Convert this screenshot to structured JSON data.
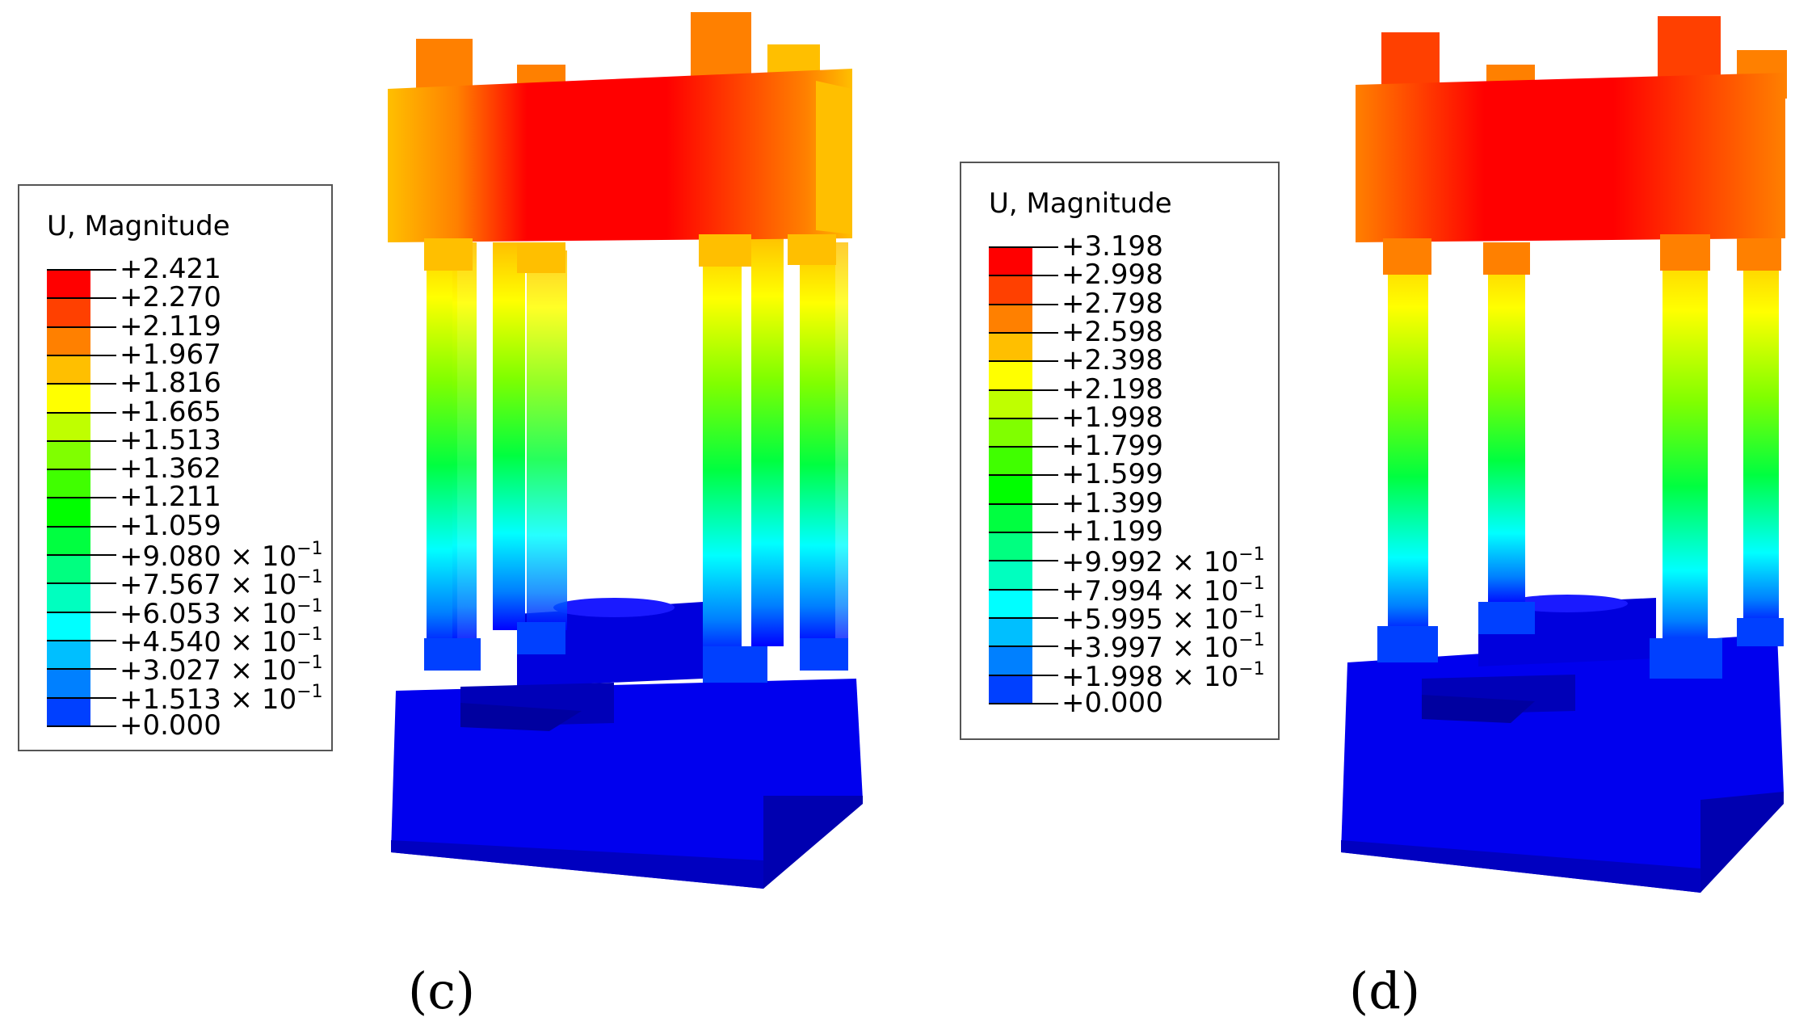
{
  "legends": [
    {
      "id": "c",
      "title": "U, Magnitude",
      "colors": [
        "#ff0000",
        "#ff4000",
        "#ff8000",
        "#ffbf00",
        "#ffff00",
        "#bfff00",
        "#80ff00",
        "#40ff00",
        "#00ff00",
        "#00ff40",
        "#00ff80",
        "#00ffbf",
        "#00ffff",
        "#00bfff",
        "#0080ff",
        "#0040ff",
        "#0000ff"
      ],
      "values": [
        {
          "mant": "+2.421",
          "exp": ""
        },
        {
          "mant": "+2.270",
          "exp": ""
        },
        {
          "mant": "+2.119",
          "exp": ""
        },
        {
          "mant": "+1.967",
          "exp": ""
        },
        {
          "mant": "+1.816",
          "exp": ""
        },
        {
          "mant": "+1.665",
          "exp": ""
        },
        {
          "mant": "+1.513",
          "exp": ""
        },
        {
          "mant": "+1.362",
          "exp": ""
        },
        {
          "mant": "+1.211",
          "exp": ""
        },
        {
          "mant": "+1.059",
          "exp": ""
        },
        {
          "mant": "+9.080",
          "exp": "−1"
        },
        {
          "mant": "+7.567",
          "exp": "−1"
        },
        {
          "mant": "+6.053",
          "exp": "−1"
        },
        {
          "mant": "+4.540",
          "exp": "−1"
        },
        {
          "mant": "+3.027",
          "exp": "−1"
        },
        {
          "mant": "+1.513",
          "exp": "−1"
        },
        {
          "mant": "+0.000",
          "exp": ""
        }
      ]
    },
    {
      "id": "d",
      "title": "U, Magnitude",
      "colors": [
        "#ff0000",
        "#ff4000",
        "#ff8000",
        "#ffbf00",
        "#ffff00",
        "#bfff00",
        "#80ff00",
        "#40ff00",
        "#00ff00",
        "#00ff40",
        "#00ff80",
        "#00ffbf",
        "#00ffff",
        "#00bfff",
        "#0080ff",
        "#0040ff",
        "#0000ff"
      ],
      "values": [
        {
          "mant": "+3.198",
          "exp": ""
        },
        {
          "mant": "+2.998",
          "exp": ""
        },
        {
          "mant": "+2.798",
          "exp": ""
        },
        {
          "mant": "+2.598",
          "exp": ""
        },
        {
          "mant": "+2.398",
          "exp": ""
        },
        {
          "mant": "+2.198",
          "exp": ""
        },
        {
          "mant": "+1.998",
          "exp": ""
        },
        {
          "mant": "+1.799",
          "exp": ""
        },
        {
          "mant": "+1.599",
          "exp": ""
        },
        {
          "mant": "+1.399",
          "exp": ""
        },
        {
          "mant": "+1.199",
          "exp": ""
        },
        {
          "mant": "+9.992",
          "exp": "−1"
        },
        {
          "mant": "+7.994",
          "exp": "−1"
        },
        {
          "mant": "+5.995",
          "exp": "−1"
        },
        {
          "mant": "+3.997",
          "exp": "−1"
        },
        {
          "mant": "+1.998",
          "exp": "−1"
        },
        {
          "mant": "+0.000",
          "exp": ""
        }
      ]
    }
  ],
  "panel_labels": {
    "c": "(c)",
    "d": "(d)"
  },
  "times_symbol": "×",
  "exp_base": "10"
}
